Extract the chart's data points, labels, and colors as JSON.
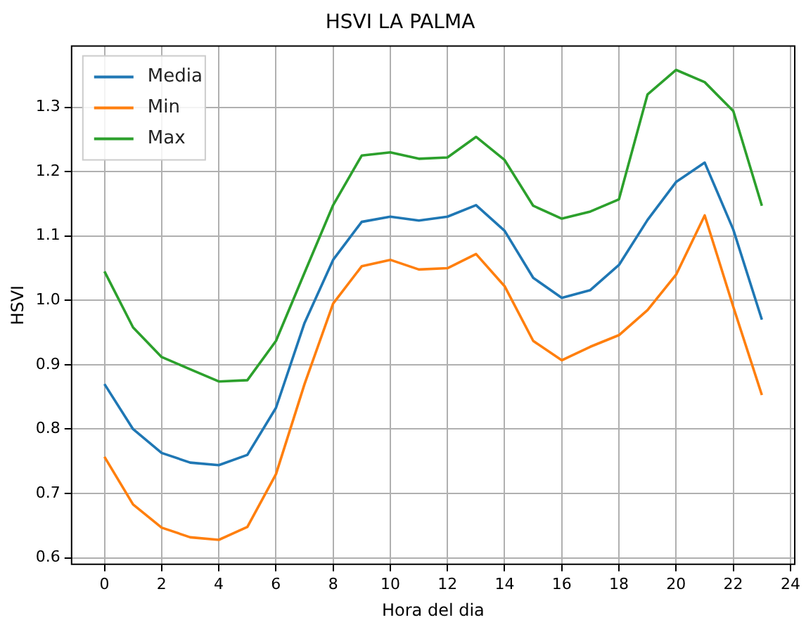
{
  "chart_data": {
    "type": "line",
    "title": "HSVI LA PALMA",
    "xlabel": "Hora del dia",
    "ylabel": "HSVI",
    "x": [
      0,
      1,
      2,
      3,
      4,
      5,
      6,
      7,
      8,
      9,
      10,
      11,
      12,
      13,
      14,
      15,
      16,
      17,
      18,
      19,
      20,
      21,
      22,
      23
    ],
    "series": [
      {
        "name": "Media",
        "color": "#1f77b4",
        "values": [
          0.87,
          0.8,
          0.763,
          0.748,
          0.744,
          0.76,
          0.833,
          0.965,
          1.063,
          1.122,
          1.13,
          1.124,
          1.13,
          1.148,
          1.108,
          1.035,
          1.004,
          1.016,
          1.055,
          1.125,
          1.184,
          1.214,
          1.11,
          0.97
        ]
      },
      {
        "name": "Min",
        "color": "#ff7f0e",
        "values": [
          0.757,
          0.683,
          0.647,
          0.632,
          0.628,
          0.648,
          0.73,
          0.87,
          0.995,
          1.053,
          1.063,
          1.048,
          1.05,
          1.072,
          1.022,
          0.937,
          0.907,
          0.928,
          0.946,
          0.985,
          1.04,
          1.132,
          0.99,
          0.853
        ]
      },
      {
        "name": "Max",
        "color": "#2ca02c",
        "values": [
          1.045,
          0.958,
          0.912,
          0.893,
          0.874,
          0.876,
          0.937,
          1.043,
          1.148,
          1.225,
          1.23,
          1.22,
          1.222,
          1.254,
          1.218,
          1.147,
          1.127,
          1.138,
          1.157,
          1.32,
          1.358,
          1.339,
          1.294,
          1.147
        ]
      }
    ],
    "xlim": [
      -1.15,
      24.15
    ],
    "xticks": [
      0,
      2,
      4,
      6,
      8,
      10,
      12,
      14,
      16,
      18,
      20,
      22,
      24
    ],
    "ylim": [
      0.59,
      1.395
    ],
    "yticks": [
      0.6,
      0.7,
      0.8,
      0.9,
      {
        "value": 1,
        "label": "1.0"
      },
      1.1,
      1.2,
      1.3
    ],
    "grid": true,
    "legend": "top left",
    "marker": "none",
    "line_style": "solid"
  }
}
